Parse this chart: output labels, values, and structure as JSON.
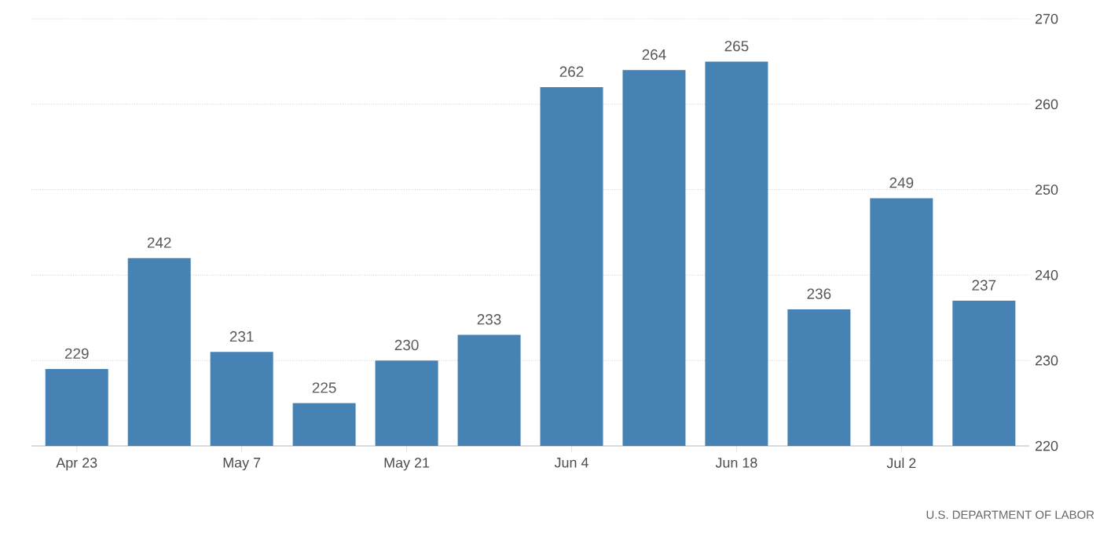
{
  "chart_data": {
    "type": "bar",
    "categories": [
      "Apr 23",
      null,
      "May 7",
      null,
      "May 21",
      null,
      "Jun 4",
      null,
      "Jun 18",
      null,
      "Jul 2",
      null
    ],
    "values": [
      229,
      242,
      231,
      225,
      230,
      233,
      262,
      264,
      265,
      236,
      249,
      237
    ],
    "color": "#4682b4",
    "ylim": [
      220,
      270
    ],
    "yticks": [
      220,
      230,
      240,
      250,
      260,
      270
    ],
    "grid": "y",
    "data_labels": true,
    "annotations": [
      "U.S. DEPARTMENT OF LABOR"
    ]
  }
}
